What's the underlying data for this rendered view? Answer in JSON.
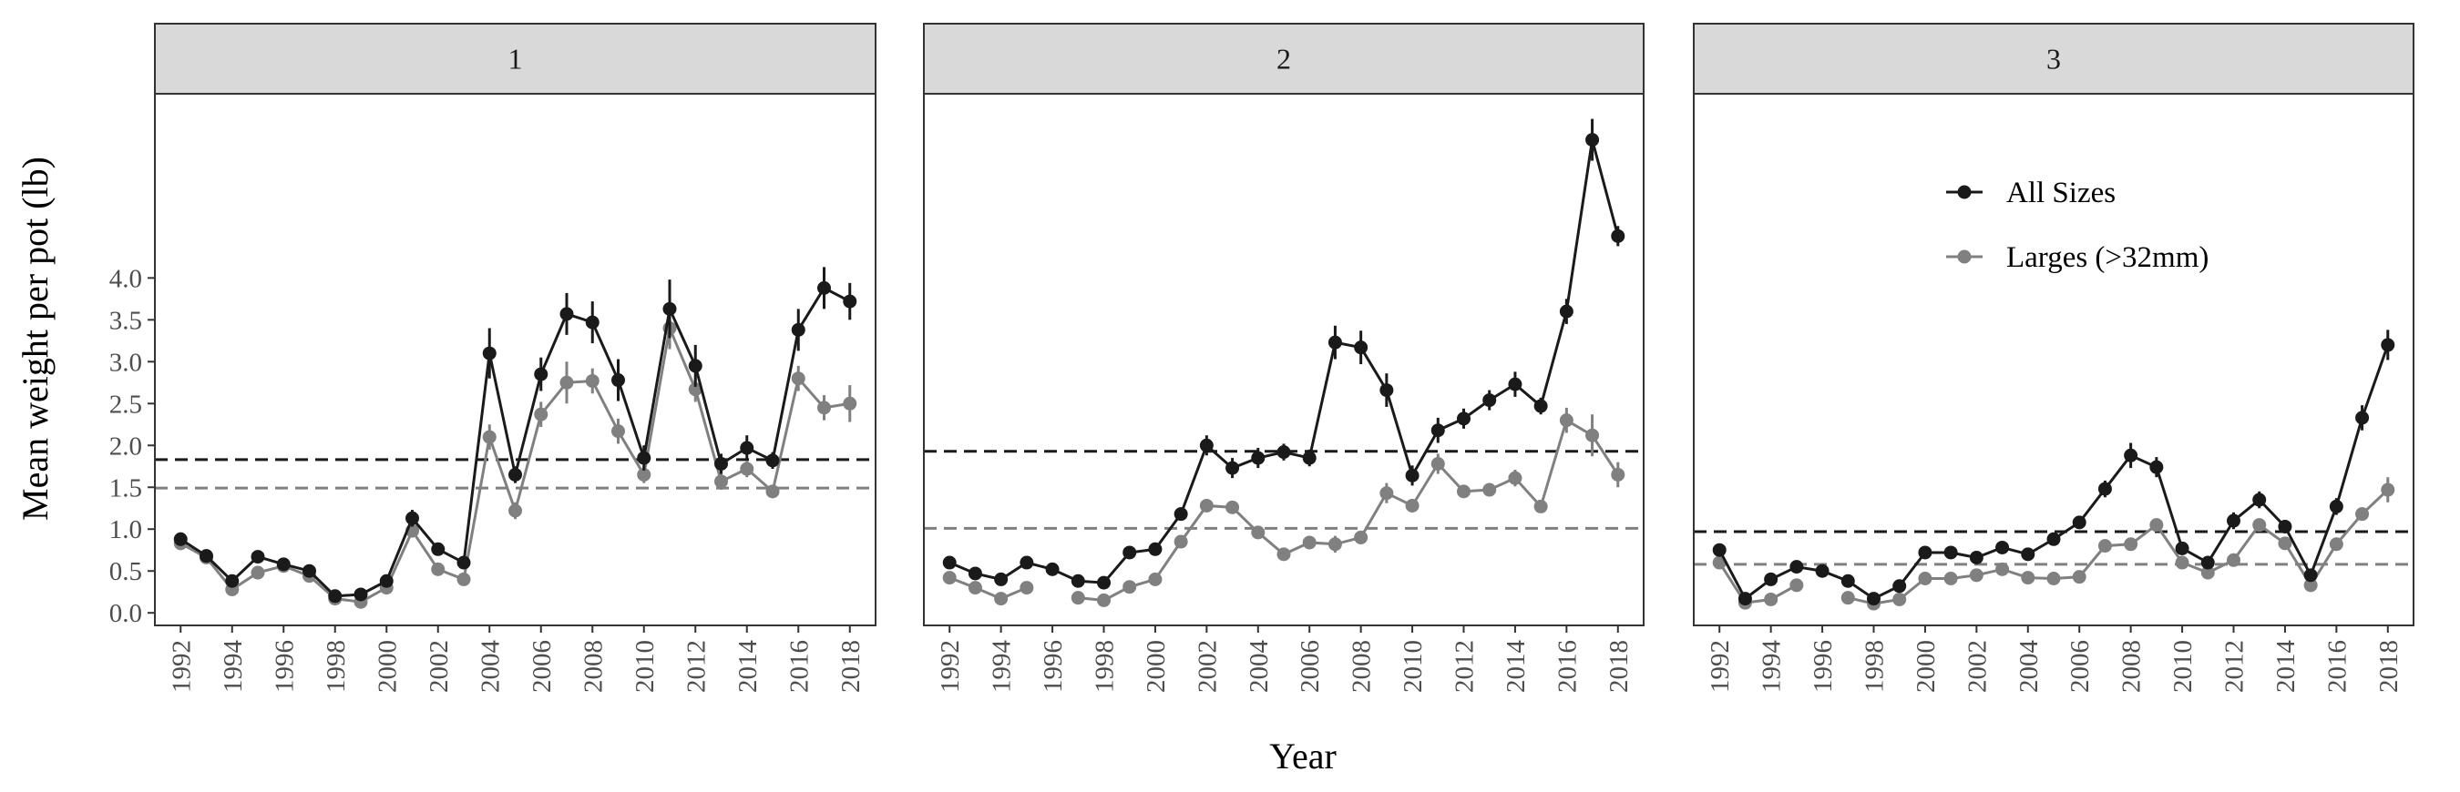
{
  "chart_data": {
    "type": "line",
    "ylabel": "Mean weight per pot (lb)",
    "xlabel": "Year",
    "yticks": [
      0.0,
      0.5,
      1.0,
      1.5,
      2.0,
      2.5,
      3.0,
      3.5,
      4.0
    ],
    "ylim": [
      -0.15,
      6.2
    ],
    "xlim": [
      1991.0,
      2019.0
    ],
    "xticks": [
      1992,
      1994,
      1996,
      1998,
      2000,
      2002,
      2004,
      2006,
      2008,
      2010,
      2012,
      2014,
      2016,
      2018
    ],
    "legend": {
      "placement": "inside panel 3, top",
      "entries": [
        "All Sizes",
        "Larges (>32mm)"
      ]
    },
    "colors": {
      "all_sizes": "#1a1a1a",
      "larges": "#808080"
    },
    "panels": [
      {
        "label": "1",
        "years": [
          1992,
          1993,
          1994,
          1995,
          1996,
          1997,
          1998,
          1999,
          2000,
          2001,
          2002,
          2003,
          2004,
          2005,
          2006,
          2007,
          2008,
          2009,
          2010,
          2011,
          2012,
          2013,
          2014,
          2015,
          2016,
          2017,
          2018
        ],
        "series": [
          {
            "name": "All Sizes",
            "color": "#1a1a1a",
            "reference": 1.83,
            "values": [
              0.88,
              0.68,
              0.38,
              0.67,
              0.58,
              0.5,
              0.2,
              0.22,
              0.38,
              1.13,
              0.76,
              0.6,
              3.1,
              1.65,
              2.85,
              3.57,
              3.47,
              2.78,
              1.85,
              3.63,
              2.95,
              1.78,
              1.97,
              1.82,
              3.38,
              3.88,
              3.72
            ],
            "err": [
              0.08,
              0.05,
              0.04,
              0.04,
              0.04,
              0.04,
              0.04,
              0.04,
              0.05,
              0.1,
              0.06,
              0.07,
              0.3,
              0.1,
              0.2,
              0.25,
              0.25,
              0.25,
              0.15,
              0.35,
              0.25,
              0.12,
              0.15,
              0.1,
              0.25,
              0.25,
              0.22
            ]
          },
          {
            "name": "Larges (>32mm)",
            "color": "#808080",
            "reference": 1.49,
            "values": [
              0.83,
              0.66,
              0.28,
              0.48,
              0.56,
              0.44,
              0.17,
              0.13,
              0.3,
              0.98,
              0.52,
              0.4,
              2.1,
              1.22,
              2.37,
              2.75,
              2.77,
              2.17,
              1.65,
              3.4,
              2.67,
              1.57,
              1.72,
              1.45,
              2.8,
              2.45,
              2.5
            ],
            "err": [
              0.08,
              0.05,
              0.04,
              0.04,
              0.04,
              0.04,
              0.04,
              0.04,
              0.05,
              0.08,
              0.05,
              0.05,
              0.15,
              0.1,
              0.15,
              0.25,
              0.15,
              0.15,
              0.1,
              0.25,
              0.15,
              0.1,
              0.1,
              0.08,
              0.15,
              0.15,
              0.22
            ]
          }
        ]
      },
      {
        "label": "2",
        "years": [
          1992,
          1993,
          1994,
          1995,
          1996,
          1997,
          1998,
          1999,
          2000,
          2001,
          2002,
          2003,
          2004,
          2005,
          2006,
          2007,
          2008,
          2009,
          2010,
          2011,
          2012,
          2013,
          2014,
          2015,
          2016,
          2017,
          2018
        ],
        "series": [
          {
            "name": "All Sizes",
            "color": "#1a1a1a",
            "reference": 1.93,
            "values": [
              0.6,
              0.47,
              0.4,
              0.6,
              0.52,
              0.38,
              0.36,
              0.72,
              0.76,
              1.18,
              2.0,
              1.73,
              1.85,
              1.92,
              1.85,
              3.23,
              3.17,
              2.66,
              1.64,
              2.18,
              2.32,
              2.54,
              2.73,
              2.47,
              3.6,
              5.65,
              4.5
            ],
            "err": [
              0.05,
              0.05,
              0.04,
              0.05,
              0.05,
              0.04,
              0.04,
              0.05,
              0.05,
              0.08,
              0.12,
              0.12,
              0.12,
              0.1,
              0.1,
              0.2,
              0.2,
              0.2,
              0.12,
              0.15,
              0.12,
              0.12,
              0.15,
              0.1,
              0.15,
              0.25,
              0.12
            ]
          },
          {
            "name": "Larges (>32mm)",
            "color": "#808080",
            "reference": 1.01,
            "values": [
              0.42,
              0.3,
              0.17,
              0.3,
              null,
              0.18,
              0.15,
              0.31,
              0.4,
              0.85,
              1.28,
              1.26,
              0.96,
              0.7,
              0.84,
              0.82,
              0.9,
              1.43,
              1.28,
              1.78,
              1.45,
              1.47,
              1.61,
              1.27,
              2.3,
              2.12,
              1.65
            ],
            "err": [
              0.04,
              0.04,
              0.03,
              0.04,
              null,
              0.03,
              0.03,
              0.04,
              0.04,
              0.06,
              0.06,
              0.06,
              0.05,
              0.05,
              0.08,
              0.1,
              0.08,
              0.12,
              0.08,
              0.12,
              0.07,
              0.07,
              0.1,
              0.06,
              0.15,
              0.25,
              0.15
            ]
          }
        ]
      },
      {
        "label": "3",
        "years": [
          1992,
          1993,
          1994,
          1995,
          1996,
          1997,
          1998,
          1999,
          2000,
          2001,
          2002,
          2003,
          2004,
          2005,
          2006,
          2007,
          2008,
          2009,
          2010,
          2011,
          2012,
          2013,
          2014,
          2015,
          2016,
          2017,
          2018
        ],
        "series": [
          {
            "name": "All Sizes",
            "color": "#1a1a1a",
            "reference": 0.97,
            "values": [
              0.75,
              0.17,
              0.4,
              0.55,
              0.5,
              0.38,
              0.17,
              0.32,
              0.72,
              0.72,
              0.66,
              0.78,
              0.7,
              0.88,
              1.08,
              1.48,
              1.88,
              1.74,
              0.77,
              0.6,
              1.1,
              1.35,
              1.03,
              0.45,
              1.27,
              2.33,
              3.2
            ],
            "err": [
              0.05,
              0.03,
              0.04,
              0.04,
              0.04,
              0.04,
              0.03,
              0.04,
              0.05,
              0.05,
              0.05,
              0.05,
              0.05,
              0.06,
              0.07,
              0.1,
              0.15,
              0.12,
              0.08,
              0.06,
              0.1,
              0.1,
              0.08,
              0.06,
              0.1,
              0.15,
              0.18
            ]
          },
          {
            "name": "Larges (>32mm)",
            "color": "#808080",
            "reference": 0.58,
            "values": [
              0.6,
              0.12,
              0.16,
              0.33,
              null,
              0.18,
              0.11,
              0.16,
              0.41,
              0.41,
              0.45,
              0.52,
              0.42,
              0.41,
              0.43,
              0.8,
              0.82,
              1.05,
              0.6,
              0.48,
              0.63,
              1.05,
              0.83,
              0.33,
              0.82,
              1.18,
              1.47
            ],
            "err": [
              0.04,
              0.03,
              0.03,
              0.03,
              null,
              0.03,
              0.03,
              0.03,
              0.04,
              0.04,
              0.04,
              0.04,
              0.04,
              0.04,
              0.04,
              0.05,
              0.05,
              0.06,
              0.05,
              0.04,
              0.05,
              0.06,
              0.05,
              0.04,
              0.06,
              0.08,
              0.15
            ]
          }
        ]
      }
    ]
  }
}
